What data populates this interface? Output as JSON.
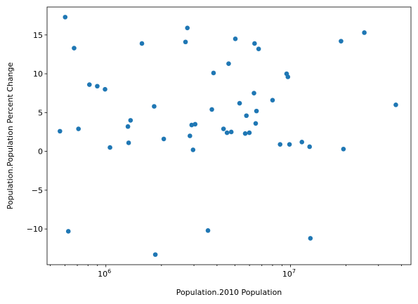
{
  "chart_data": {
    "type": "scatter",
    "title": "",
    "xlabel": "Population.2010 Population",
    "ylabel": "Population.Population Percent Change",
    "xscale": "log",
    "xlim": [
      480000,
      45000000
    ],
    "ylim": [
      -14.6,
      18.6
    ],
    "grid": false,
    "legend": "none",
    "point_color": "#1f77b4",
    "x_major_ticks": [
      1000000,
      10000000
    ],
    "x_major_tick_labels": [
      {
        "base": "10",
        "exp": "6"
      },
      {
        "base": "10",
        "exp": "7"
      }
    ],
    "y_ticks": [
      -10,
      -5,
      0,
      5,
      10,
      15
    ],
    "y_tick_labels": [
      "−10",
      "−5",
      "0",
      "5",
      "10",
      "15"
    ],
    "points": [
      [
        563626,
        2.6
      ],
      [
        601723,
        17.3
      ],
      [
        625741,
        -10.3
      ],
      [
        672591,
        13.3
      ],
      [
        710231,
        2.9
      ],
      [
        814180,
        8.6
      ],
      [
        897934,
        8.4
      ],
      [
        989415,
        8.0
      ],
      [
        1052567,
        0.5
      ],
      [
        1316470,
        3.2
      ],
      [
        1328361,
        1.1
      ],
      [
        1360301,
        4.0
      ],
      [
        1567582,
        13.9
      ],
      [
        1826341,
        5.8
      ],
      [
        1852994,
        -13.3
      ],
      [
        2059179,
        1.6
      ],
      [
        2700551,
        14.1
      ],
      [
        2763885,
        15.9
      ],
      [
        2853118,
        2.0
      ],
      [
        2915918,
        3.4
      ],
      [
        2967297,
        0.2
      ],
      [
        3046355,
        3.5
      ],
      [
        3574097,
        -10.2
      ],
      [
        3751351,
        5.4
      ],
      [
        3831074,
        10.1
      ],
      [
        4339367,
        2.9
      ],
      [
        4533372,
        2.4
      ],
      [
        4625364,
        11.3
      ],
      [
        4779736,
        2.5
      ],
      [
        5029196,
        14.5
      ],
      [
        5303925,
        6.2
      ],
      [
        5686986,
        2.3
      ],
      [
        5773552,
        4.6
      ],
      [
        5988927,
        2.4
      ],
      [
        6346105,
        7.5
      ],
      [
        6392017,
        13.9
      ],
      [
        6483802,
        3.6
      ],
      [
        6547629,
        5.2
      ],
      [
        6724540,
        13.2
      ],
      [
        8001024,
        6.6
      ],
      [
        8791894,
        0.9
      ],
      [
        9535483,
        10.0
      ],
      [
        9687653,
        9.6
      ],
      [
        9883640,
        0.9
      ],
      [
        11536504,
        1.2
      ],
      [
        12702379,
        0.6
      ],
      [
        12830632,
        -11.2
      ],
      [
        18801310,
        14.2
      ],
      [
        19378102,
        0.3
      ],
      [
        25145561,
        15.3
      ],
      [
        37253956,
        6.0
      ]
    ]
  }
}
